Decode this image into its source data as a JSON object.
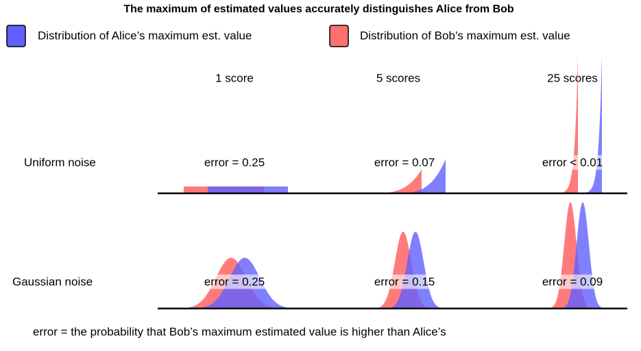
{
  "title": "The maximum of estimated values accurately distinguishes Alice from Bob",
  "legend": [
    "Distribution of Alice’s maximum est. value",
    "Distribution of Bob’s maximum est. value"
  ],
  "columns": [
    "1 score",
    "5 scores",
    "25 scores"
  ],
  "rows": [
    {
      "label": "Uniform noise",
      "errors": [
        "error = 0.25",
        "error = 0.07",
        "error < 0.01"
      ]
    },
    {
      "label": "Gaussian noise",
      "errors": [
        "error = 0.25",
        "error = 0.15",
        "error = 0.09"
      ]
    }
  ],
  "footnote": "error = the probability that Bob’s maximum estimated value is higher than Alice’s"
}
